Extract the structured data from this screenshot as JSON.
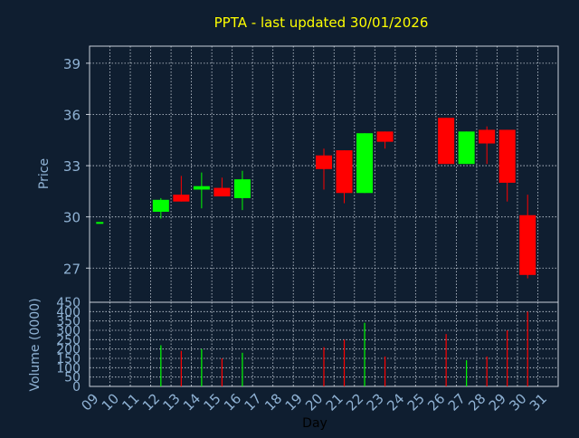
{
  "title": "PPTA - last updated 30/01/2026",
  "colors": {
    "background": "#0f1e30",
    "title": "#ffff00",
    "axis_text": "#8fb2d4",
    "xlabel_text": "#000000",
    "grid": "#c8d0da",
    "frame": "#c8d0da",
    "up": "#00ff00",
    "down": "#ff0000"
  },
  "chart_data": [
    {
      "type": "candlestick",
      "ylabel": "Price",
      "ylim": [
        25,
        40
      ],
      "yticks": [
        27,
        30,
        33,
        36,
        39
      ],
      "grid": true,
      "points": [
        {
          "day": "09",
          "open": 29.7,
          "close": 29.7,
          "high": 29.7,
          "low": 29.7
        },
        {
          "day": "12",
          "open": 30.3,
          "close": 31.0,
          "high": 31.1,
          "low": 29.9
        },
        {
          "day": "13",
          "open": 31.3,
          "close": 30.9,
          "high": 32.4,
          "low": 30.9
        },
        {
          "day": "14",
          "open": 31.6,
          "close": 31.8,
          "high": 32.6,
          "low": 30.5
        },
        {
          "day": "15",
          "open": 31.7,
          "close": 31.2,
          "high": 32.3,
          "low": 31.2
        },
        {
          "day": "16",
          "open": 31.1,
          "close": 32.2,
          "high": 32.7,
          "low": 30.4
        },
        {
          "day": "20",
          "open": 33.6,
          "close": 32.8,
          "high": 34.0,
          "low": 31.6
        },
        {
          "day": "21",
          "open": 33.9,
          "close": 31.4,
          "high": 33.9,
          "low": 30.8
        },
        {
          "day": "22",
          "open": 31.4,
          "close": 34.9,
          "high": 34.9,
          "low": 31.4
        },
        {
          "day": "23",
          "open": 35.0,
          "close": 34.4,
          "high": 35.0,
          "low": 34.0
        },
        {
          "day": "26",
          "open": 35.8,
          "close": 33.1,
          "high": 35.8,
          "low": 33.1
        },
        {
          "day": "27",
          "open": 33.1,
          "close": 35.0,
          "high": 35.0,
          "low": 33.1
        },
        {
          "day": "28",
          "open": 35.1,
          "close": 34.3,
          "high": 35.3,
          "low": 33.1
        },
        {
          "day": "29",
          "open": 35.1,
          "close": 32.0,
          "high": 35.1,
          "low": 30.9
        },
        {
          "day": "30",
          "open": 30.1,
          "close": 26.6,
          "high": 31.3,
          "low": 26.4
        }
      ]
    },
    {
      "type": "bar",
      "ylabel": "Volume (0000)",
      "xlabel": "Day",
      "ylim": [
        0,
        450
      ],
      "yticks": [
        0,
        50,
        100,
        150,
        200,
        250,
        300,
        350,
        400,
        450
      ],
      "xticks": [
        "09",
        "10",
        "11",
        "12",
        "13",
        "14",
        "15",
        "16",
        "17",
        "18",
        "19",
        "20",
        "21",
        "22",
        "23",
        "24",
        "25",
        "26",
        "27",
        "28",
        "29",
        "30",
        "31"
      ],
      "grid": true,
      "volumes": [
        {
          "day": "12",
          "value": 220,
          "up": true
        },
        {
          "day": "13",
          "value": 190,
          "up": false
        },
        {
          "day": "14",
          "value": 200,
          "up": true
        },
        {
          "day": "15",
          "value": 150,
          "up": false
        },
        {
          "day": "16",
          "value": 180,
          "up": true
        },
        {
          "day": "20",
          "value": 210,
          "up": false
        },
        {
          "day": "21",
          "value": 250,
          "up": false
        },
        {
          "day": "22",
          "value": 340,
          "up": true
        },
        {
          "day": "23",
          "value": 160,
          "up": false
        },
        {
          "day": "26",
          "value": 280,
          "up": false
        },
        {
          "day": "27",
          "value": 140,
          "up": true
        },
        {
          "day": "28",
          "value": 160,
          "up": false
        },
        {
          "day": "29",
          "value": 300,
          "up": false
        },
        {
          "day": "30",
          "value": 400,
          "up": false
        }
      ]
    }
  ]
}
